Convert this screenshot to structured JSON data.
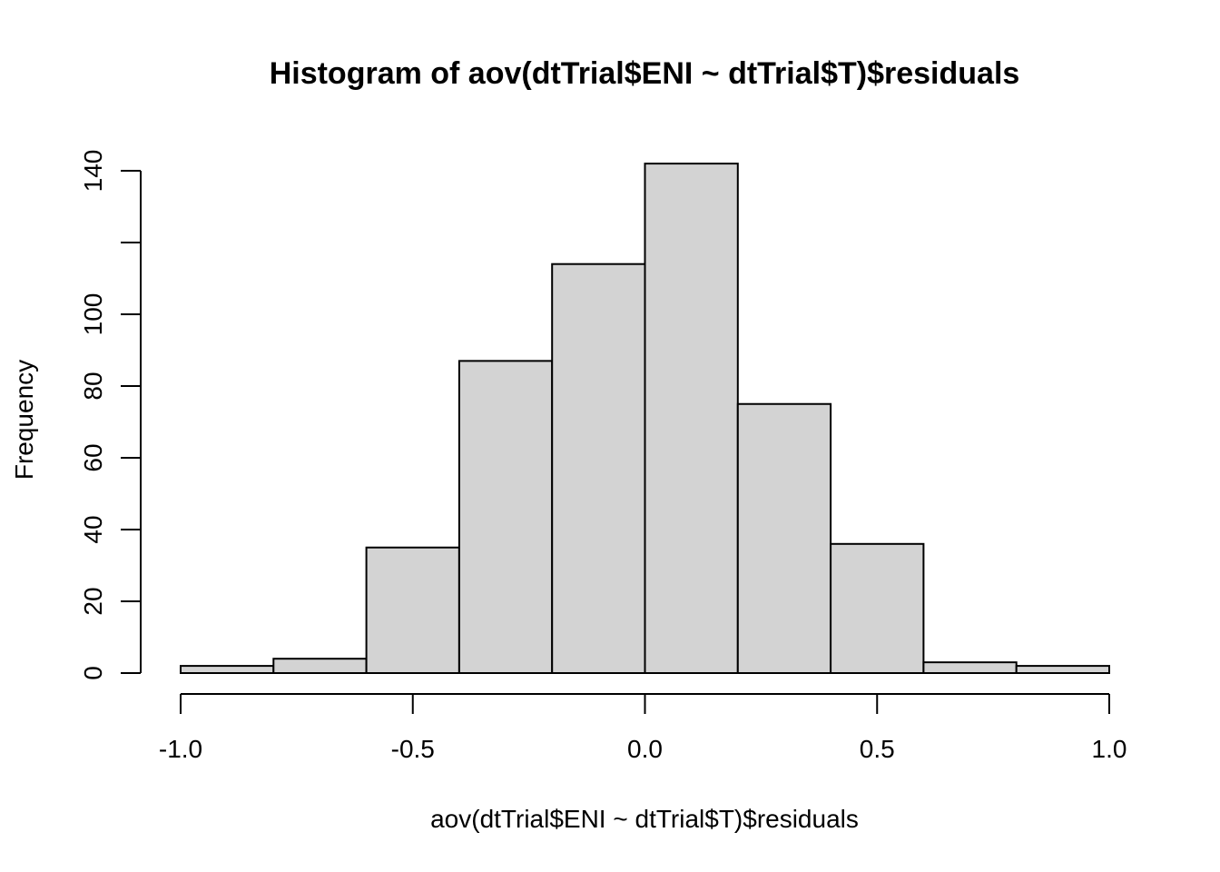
{
  "chart_data": {
    "type": "bar",
    "title": "Histogram of aov(dtTrial$ENI ~ dtTrial$T)$residuals",
    "xlabel": "aov(dtTrial$ENI ~ dtTrial$T)$residuals",
    "ylabel": "Frequency",
    "xlim": [
      -1.0,
      1.0
    ],
    "ylim": [
      0,
      140
    ],
    "bin_edges": [
      -1.0,
      -0.8,
      -0.6,
      -0.4,
      -0.2,
      0.0,
      0.2,
      0.4,
      0.6,
      0.8,
      1.0
    ],
    "values": [
      2,
      4,
      35,
      87,
      114,
      142,
      75,
      36,
      3,
      2
    ],
    "x_ticks": [
      -1.0,
      -0.5,
      0.0,
      0.5,
      1.0
    ],
    "x_tick_labels": [
      "-1.0",
      "-0.5",
      "0.0",
      "0.5",
      "1.0"
    ],
    "y_ticks": [
      0,
      20,
      40,
      60,
      80,
      100,
      120,
      140
    ],
    "y_tick_labels": [
      "0",
      "20",
      "40",
      "60",
      "80",
      "100",
      "",
      "140"
    ],
    "bar_color": "#d3d3d3",
    "grid": false,
    "legend": "none"
  }
}
